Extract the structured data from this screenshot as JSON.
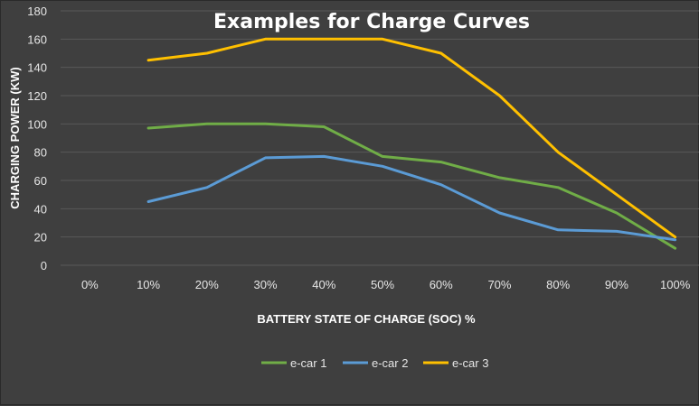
{
  "chart_data": {
    "type": "line",
    "title": "Examples for Charge Curves",
    "xlabel": "BATTERY STATE OF CHARGE (SOC) %",
    "ylabel": "CHARGING POWER (KW)",
    "categories": [
      "0%",
      "10%",
      "20%",
      "30%",
      "40%",
      "50%",
      "60%",
      "70%",
      "80%",
      "90%",
      "100%"
    ],
    "yticks": [
      "0",
      "20",
      "40",
      "60",
      "80",
      "100",
      "120",
      "140",
      "160",
      "180"
    ],
    "ylim": [
      0,
      180
    ],
    "grid": true,
    "legend_position": "bottom",
    "series": [
      {
        "name": "e-car 1",
        "color": "#70ad47",
        "values": [
          null,
          97,
          100,
          100,
          98,
          77,
          73,
          62,
          55,
          37,
          12
        ]
      },
      {
        "name": "e-car 2",
        "color": "#5b9bd5",
        "values": [
          null,
          45,
          55,
          76,
          77,
          70,
          57,
          37,
          25,
          24,
          18
        ]
      },
      {
        "name": "e-car 3",
        "color": "#ffc000",
        "values": [
          null,
          145,
          150,
          160,
          160,
          160,
          150,
          120,
          80,
          50,
          20
        ]
      }
    ]
  }
}
